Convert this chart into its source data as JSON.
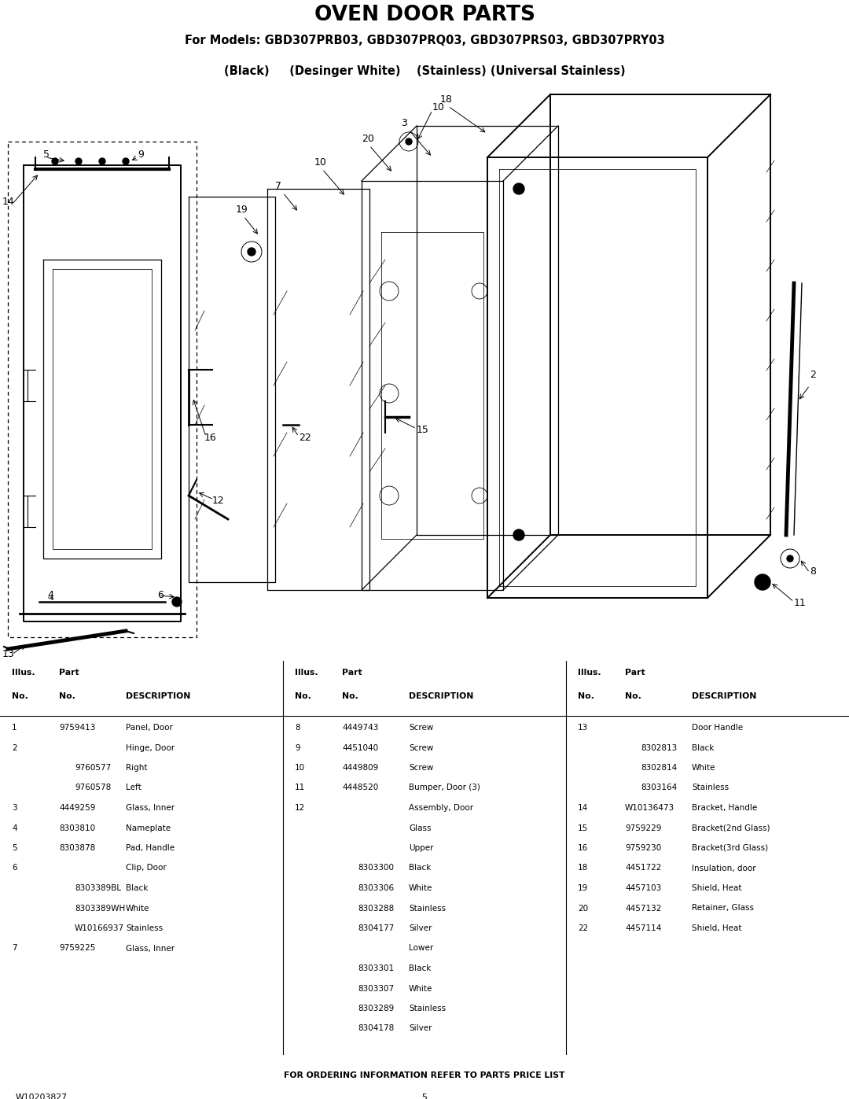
{
  "title": "OVEN DOOR PARTS",
  "subtitle1": "For Models: GBD307PRB03, GBD307PRQ03, GBD307PRS03, GBD307PRY03",
  "subtitle2": "(Black)     (Desinger White)    (Stainless) (Universal Stainless)",
  "footer_note": "FOR ORDERING INFORMATION REFER TO PARTS PRICE LIST",
  "doc_number": "W10203827",
  "page_number": "5",
  "bg_color": "#ffffff",
  "text_color": "#000000",
  "col1_rows": [
    [
      "1",
      "9759413",
      "Panel, Door"
    ],
    [
      "2",
      "",
      "Hinge, Door"
    ],
    [
      "",
      "9760577",
      "Right"
    ],
    [
      "",
      "9760578",
      "Left"
    ],
    [
      "3",
      "4449259",
      "Glass, Inner"
    ],
    [
      "4",
      "8303810",
      "Nameplate"
    ],
    [
      "5",
      "8303878",
      "Pad, Handle"
    ],
    [
      "6",
      "",
      "Clip, Door"
    ],
    [
      "",
      "8303389BL",
      "Black"
    ],
    [
      "",
      "8303389WH",
      "White"
    ],
    [
      "",
      "W10166937",
      "Stainless"
    ],
    [
      "7",
      "9759225",
      "Glass, Inner"
    ]
  ],
  "col2_rows": [
    [
      "8",
      "4449743",
      "Screw"
    ],
    [
      "9",
      "4451040",
      "Screw"
    ],
    [
      "10",
      "4449809",
      "Screw"
    ],
    [
      "11",
      "4448520",
      "Bumper, Door (3)"
    ],
    [
      "12",
      "",
      "Assembly, Door"
    ],
    [
      "",
      "",
      "Glass"
    ],
    [
      "",
      "",
      "Upper"
    ],
    [
      "",
      "8303300",
      "Black"
    ],
    [
      "",
      "8303306",
      "White"
    ],
    [
      "",
      "8303288",
      "Stainless"
    ],
    [
      "",
      "8304177",
      "Silver"
    ],
    [
      "",
      "",
      "Lower"
    ],
    [
      "",
      "8303301",
      "Black"
    ],
    [
      "",
      "8303307",
      "White"
    ],
    [
      "",
      "8303289",
      "Stainless"
    ],
    [
      "",
      "8304178",
      "Silver"
    ]
  ],
  "col3_rows": [
    [
      "13",
      "",
      "Door Handle"
    ],
    [
      "",
      "8302813",
      "Black"
    ],
    [
      "",
      "8302814",
      "White"
    ],
    [
      "",
      "8303164",
      "Stainless"
    ],
    [
      "14",
      "W10136473",
      "Bracket, Handle"
    ],
    [
      "15",
      "9759229",
      "Bracket(2nd Glass)"
    ],
    [
      "16",
      "9759230",
      "Bracket(3rd Glass)"
    ],
    [
      "18",
      "4451722",
      "Insulation, door"
    ],
    [
      "19",
      "4457103",
      "Shield, Heat"
    ],
    [
      "20",
      "4457132",
      "Retainer, Glass"
    ],
    [
      "22",
      "4457114",
      "Shield, Heat"
    ]
  ],
  "fig_width": 10.8,
  "fig_height": 13.97,
  "dpi": 100
}
